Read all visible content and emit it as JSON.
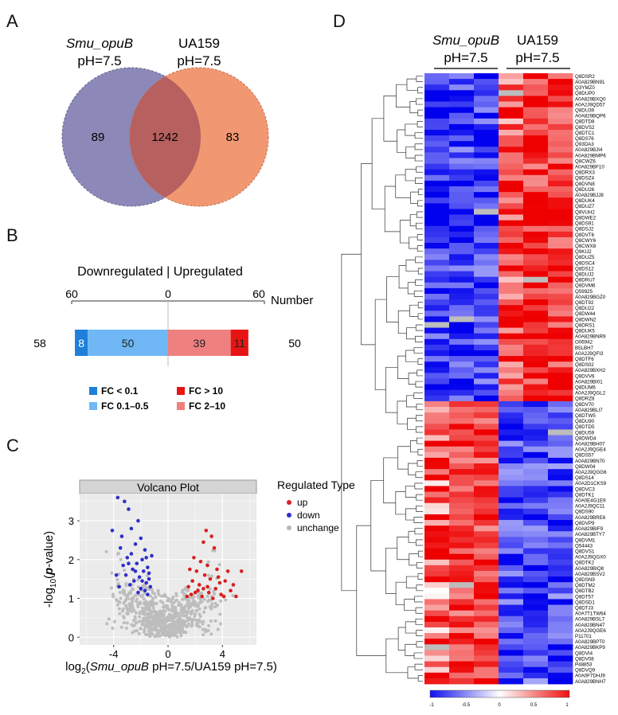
{
  "panels": {
    "a": "A",
    "b": "B",
    "c": "C",
    "d": "D"
  },
  "venn": {
    "left_label_italic": "Smu_opuB",
    "left_label_cond": "pH=7.5",
    "right_label": "UA159",
    "right_label_cond": "pH=7.5",
    "left_only": "89",
    "shared": "1242",
    "right_only": "83",
    "colors": {
      "left": "#8c88b8",
      "right": "#f0926a",
      "overlap": "#b66060"
    }
  },
  "bar_panel": {
    "title": "Downregulated | Upregulated",
    "axis_unit": "Number",
    "ticks": [
      "60",
      "0",
      "60"
    ],
    "down_total": "58",
    "up_total": "50",
    "segments": {
      "down_strong": {
        "label": "8",
        "value": 8,
        "color": "#1f7fd9"
      },
      "down_mild": {
        "label": "50",
        "value": 50,
        "color": "#6fb8f5"
      },
      "up_mild": {
        "label": "39",
        "value": 39,
        "color": "#ef8080"
      },
      "up_strong": {
        "label": "11",
        "value": 11,
        "color": "#e81414"
      }
    },
    "legend": [
      "FC < 0.1",
      "FC 0.1–0.5",
      "FC > 10",
      "FC 2–10"
    ]
  },
  "chart_data": {
    "type": "scatter",
    "title": "Volcano Plot",
    "xlabel": "log2(Smu_opuB pH=7.5/UA159 pH=7.5)",
    "xlabel_parts": {
      "prefix": "log",
      "sub": "2",
      "open": "(",
      "italic": "Smu_opuB",
      "rest": " pH=7.5/UA159 pH=7.5)"
    },
    "ylabel": "-log10(p-value)",
    "ylabel_parts": {
      "prefix": "-log",
      "sub": "10",
      "open": "(",
      "italic": "p",
      "rest": "-value)"
    },
    "xlim": [
      -6.5,
      6.5
    ],
    "ylim": [
      -0.2,
      3.7
    ],
    "xticks": [
      "-4",
      "0",
      "4"
    ],
    "yticks": [
      "0",
      "1",
      "2",
      "3"
    ],
    "legend_title": "Regulated Type",
    "legend": [
      {
        "name": "up",
        "color": "#d92020"
      },
      {
        "name": "down",
        "color": "#3030c8"
      },
      {
        "name": "unchange",
        "color": "#b8b8b8"
      }
    ],
    "series": [
      {
        "name": "down",
        "color": "#3030c8",
        "points": [
          [
            -3.7,
            3.6
          ],
          [
            -3.2,
            3.5
          ],
          [
            -2.9,
            3.3
          ],
          [
            -4.1,
            2.75
          ],
          [
            -2.2,
            3.0
          ],
          [
            -2.4,
            2.4
          ],
          [
            -3.5,
            2.3
          ],
          [
            -2.0,
            2.55
          ],
          [
            -1.7,
            2.25
          ],
          [
            -2.7,
            2.15
          ],
          [
            -3.0,
            2.05
          ],
          [
            -1.9,
            2.0
          ],
          [
            -2.3,
            1.9
          ],
          [
            -3.3,
            1.85
          ],
          [
            -1.5,
            1.8
          ],
          [
            -2.6,
            1.75
          ],
          [
            -1.8,
            1.7
          ],
          [
            -3.1,
            1.6
          ],
          [
            -2.1,
            1.55
          ],
          [
            -1.4,
            1.5
          ],
          [
            -2.5,
            1.45
          ],
          [
            -1.6,
            1.4
          ],
          [
            -2.8,
            1.35
          ],
          [
            -1.3,
            1.3
          ],
          [
            -2.0,
            1.25
          ],
          [
            -3.6,
            1.3
          ],
          [
            -1.7,
            1.2
          ],
          [
            -2.2,
            1.15
          ],
          [
            -1.5,
            1.1
          ],
          [
            -2.9,
            1.9
          ],
          [
            -1.2,
            2.1
          ],
          [
            -3.8,
            1.6
          ],
          [
            -2.4,
            1.7
          ],
          [
            -1.9,
            1.45
          ],
          [
            -1.4,
            1.65
          ],
          [
            -3.4,
            2.6
          ],
          [
            -2.7,
            2.8
          ],
          [
            -1.6,
            2.05
          ]
        ]
      },
      {
        "name": "up",
        "color": "#d92020",
        "points": [
          [
            2.8,
            2.75
          ],
          [
            3.2,
            2.6
          ],
          [
            2.6,
            2.45
          ],
          [
            3.4,
            2.3
          ],
          [
            1.9,
            2.05
          ],
          [
            2.4,
            1.95
          ],
          [
            2.9,
            1.85
          ],
          [
            1.6,
            1.75
          ],
          [
            3.6,
            1.75
          ],
          [
            2.1,
            1.7
          ],
          [
            4.4,
            1.7
          ],
          [
            5.4,
            1.7
          ],
          [
            2.7,
            1.6
          ],
          [
            3.1,
            1.5
          ],
          [
            1.8,
            1.45
          ],
          [
            3.8,
            1.4
          ],
          [
            4.2,
            1.45
          ],
          [
            2.3,
            1.35
          ],
          [
            4.8,
            1.35
          ],
          [
            1.5,
            1.3
          ],
          [
            2.6,
            1.25
          ],
          [
            3.5,
            1.25
          ],
          [
            4.6,
            1.2
          ],
          [
            2.0,
            1.15
          ],
          [
            3.0,
            1.15
          ],
          [
            3.9,
            1.1
          ],
          [
            1.7,
            1.1
          ],
          [
            2.5,
            1.05
          ],
          [
            4.1,
            1.05
          ],
          [
            3.3,
            1.0
          ],
          [
            5.0,
            1.05
          ],
          [
            1.4,
            1.05
          ],
          [
            2.2,
            1.2
          ],
          [
            3.7,
            1.55
          ],
          [
            2.9,
            1.3
          ]
        ]
      }
    ]
  },
  "heatmap": {
    "group1_italic": "Smu_opuB",
    "group1_cond": "pH=7.5",
    "group2": "UA159",
    "group2_cond": "pH=7.5",
    "scale_labels": [
      "-1",
      "-0.5",
      "0",
      "0.5",
      "1"
    ],
    "genes": [
      "Q8DSR2",
      "A0A829BN91",
      "Q3YMZ0",
      "Q8DUP0",
      "A0A829BXQ0",
      "A0A2J9QD57",
      "Q8DU39",
      "A0A829BQP6",
      "Q8DTD8",
      "Q8DVS2",
      "Q8DTC1",
      "Q8DS76",
      "Q93DA3",
      "A0A829BJI4",
      "A0A829BMP6",
      "Q8CWZ6",
      "A0A829BF10",
      "Q8DRX3",
      "Q8DSZ4",
      "Q8DVN8",
      "Q8DU26",
      "A0A829BJJ8",
      "Q8DUK4",
      "Q8DUZ7",
      "Q8VUH2",
      "Q8DWE2",
      "Q8DS91",
      "Q8DSJ2",
      "Q8DVT6",
      "Q8CWY6",
      "Q8CWX8",
      "Q9KIJ2",
      "Q8DUZ5",
      "Q8DSC4",
      "Q8DS12",
      "Q8DUJ2",
      "Q8DRU7",
      "Q8DVM6",
      "Q59925",
      "A0A829BGZ0",
      "Q8DT92",
      "Q8DU22",
      "Q8DW44",
      "Q8DWN2",
      "Q8DRS1",
      "Q8DUK5",
      "A0A829BNR9",
      "O06942",
      "B5LBH7",
      "A0A2J9QFI3",
      "Q8DTF6",
      "Q8DS02",
      "A0A829BXH2",
      "Q8DVV6",
      "A0A829BI01",
      "Q8DUM6",
      "A0A2J9QGL2",
      "Q8DRZ8",
      "Q8DV70",
      "A0A829BLI7",
      "Q8DTW5",
      "Q8DU90",
      "Q8DTD5",
      "Q8DU59",
      "Q8DWD4",
      "A0A829BH07",
      "A0A2J9QGE4",
      "Q8DS57",
      "A0A829BN70",
      "Q8DW04",
      "A0A2J9QGG6",
      "Q8DS14",
      "A0A2D1CKS9",
      "Q8DVC3",
      "Q8DTK1",
      "A0A0E4G1E9",
      "A0A2J9QC11",
      "Q8DS90",
      "A0A829BRE6",
      "Q8DVP9",
      "A0A829BIF9",
      "A0A829BTY7",
      "Q8DVM1",
      "Q54443",
      "Q8DVS1",
      "A0A2J9QGX0",
      "Q8DTK2",
      "A0A829BIQ8",
      "A0A829BSV2",
      "Q8DSN9",
      "Q8DTM2",
      "Q8DTB2",
      "Q8DT57",
      "Q8DSD1",
      "Q8DTJ3",
      "A0A7T1TW64",
      "A0A829BSL7",
      "A0A829BN47",
      "A0A2J9QGE6",
      "P11701",
      "A0A829BPT0",
      "A0A829BKP9",
      "Q8DVI4",
      "Q8DV08",
      "P48853",
      "Q8DVQ9",
      "A0A0F7DHJ9",
      "A0A829BNH7"
    ]
  }
}
